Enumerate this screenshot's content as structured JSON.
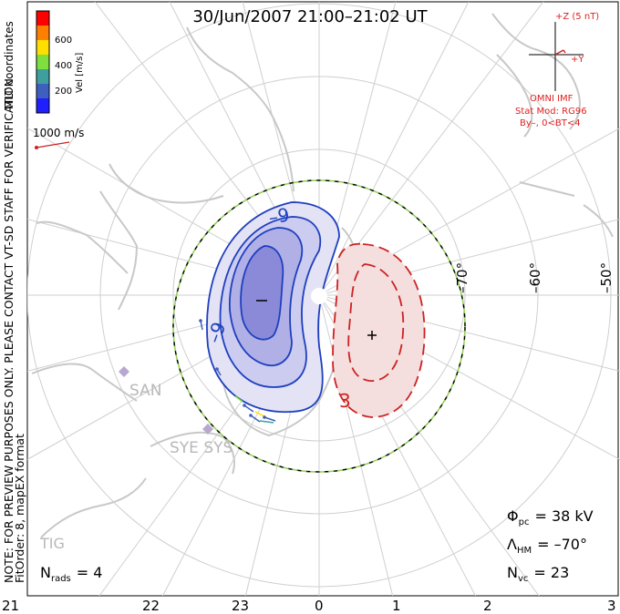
{
  "title": "30/Jun/2007 21:00–21:02 UT",
  "side_note_1": "NOTE: FOR PREVIEW PURPOSES ONLY. PLEASE CONTACT VT-SD STAFF FOR VERIFICATION.",
  "side_note_2": "FitOrder: 8, mapEX format",
  "coords_label": "MLT coordinates",
  "colorbar": {
    "label": "Vel [m/s]",
    "ticks": [
      "600",
      "400",
      "200"
    ],
    "colors": [
      "#ff0000",
      "#ff7f00",
      "#ffdf00",
      "#7fdf3f",
      "#3f9f9f",
      "#3f5fbf",
      "#1f1fff"
    ]
  },
  "vector_scale": "1000 m/s",
  "imf": {
    "z_label": "+Z (5 nT)",
    "y_label": "+Y",
    "source": "OMNI IMF",
    "stat_mod": "Stat Mod: RG96",
    "condition": "By–, 0<BT<4"
  },
  "mlt_labels": [
    "21",
    "22",
    "23",
    "0",
    "1",
    "2",
    "3"
  ],
  "lat_labels": [
    "–70°",
    "–60°",
    "–50°"
  ],
  "contour_labels": {
    "neg": "–9",
    "neg2": "–9",
    "pos": "3"
  },
  "stations": [
    "SAN",
    "SYE SYS",
    "TIG"
  ],
  "stats": {
    "phi_pc_sym": "Φ",
    "phi_pc_sub": "pc",
    "phi_pc_val": "=  38 kV",
    "lambda_sym": "Λ",
    "lambda_sub": "HM",
    "lambda_val": "= –70°",
    "nvc_sym": "N",
    "nvc_sub": "vc",
    "nvc_val": "=  23",
    "nrads_sym": "N",
    "nrads_sub": "rads",
    "nrads_val": "=  4"
  },
  "colors": {
    "negative_cell": "#1e3fbf",
    "positive_cell": "#cc2222",
    "land": "#c8c8c8",
    "hmb_dash": "#8fd14f",
    "grid": "#cccccc",
    "title_red": "#e02020"
  }
}
